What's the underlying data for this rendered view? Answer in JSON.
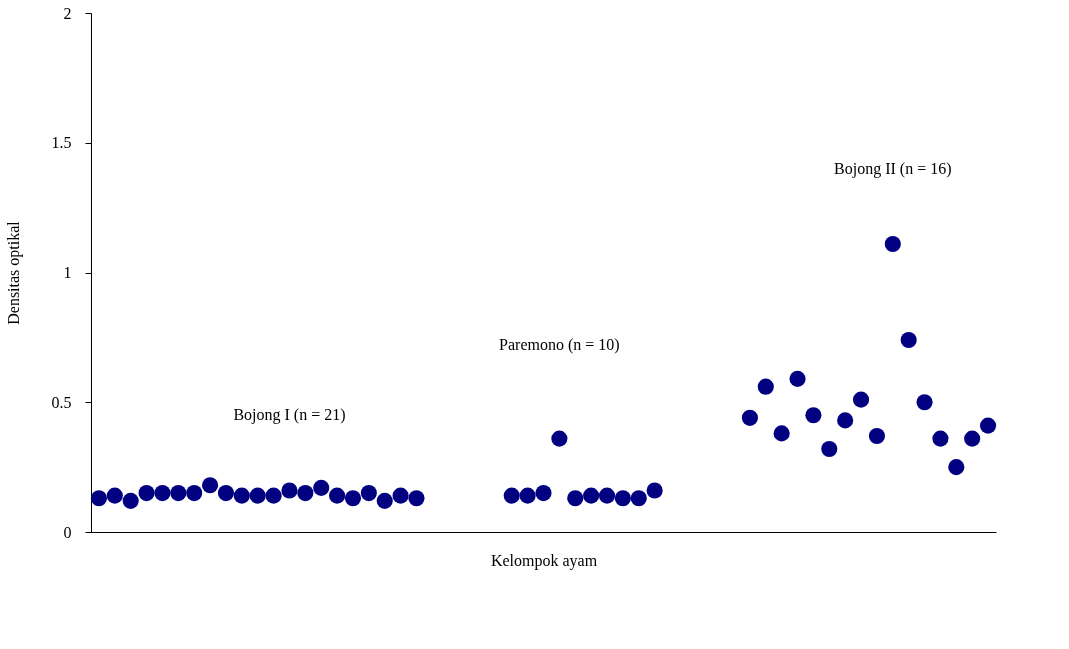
{
  "chart_data": {
    "type": "scatter",
    "xlabel": "Kelompok ayam",
    "ylabel": "Densitas optikal",
    "categories": [
      null,
      null,
      null,
      null,
      null,
      null,
      null,
      null,
      null,
      null,
      null,
      null,
      null,
      null,
      null,
      null,
      null,
      null,
      null,
      null,
      null,
      null,
      null,
      null,
      null,
      null,
      null,
      null,
      null,
      null,
      null,
      null,
      null,
      null,
      null,
      null,
      null,
      null,
      null,
      null,
      null,
      null,
      null,
      null,
      null,
      null,
      null,
      null,
      null,
      null,
      null,
      null,
      null,
      null,
      null,
      null,
      null
    ],
    "series": [
      {
        "color": "#000080",
        "values": [
          0.13,
          0.14,
          0.12,
          0.15,
          0.15,
          0.15,
          0.15,
          0.18,
          0.15,
          0.14,
          0.14,
          0.14,
          0.16,
          0.15,
          0.17,
          0.14,
          0.13,
          0.15,
          0.12,
          0.14,
          0.13,
          null,
          null,
          null,
          null,
          null,
          0.14,
          0.14,
          0.15,
          0.36,
          0.13,
          0.14,
          0.14,
          0.13,
          0.13,
          0.16,
          null,
          null,
          null,
          null,
          null,
          0.44,
          0.56,
          0.38,
          0.59,
          0.45,
          0.32,
          0.43,
          0.51,
          0.37,
          1.11,
          0.74,
          0.5,
          0.36,
          0.25,
          0.36,
          0.41
        ]
      }
    ],
    "ylim": [
      0,
      2
    ],
    "yticks": [
      0,
      0.5,
      1,
      1.5,
      2
    ],
    "grid": false,
    "marker": "circle",
    "annotations": [
      "Bojong I (n = 21)",
      "Paremono (n = 10)",
      "Bojong II (n = 16)"
    ]
  }
}
